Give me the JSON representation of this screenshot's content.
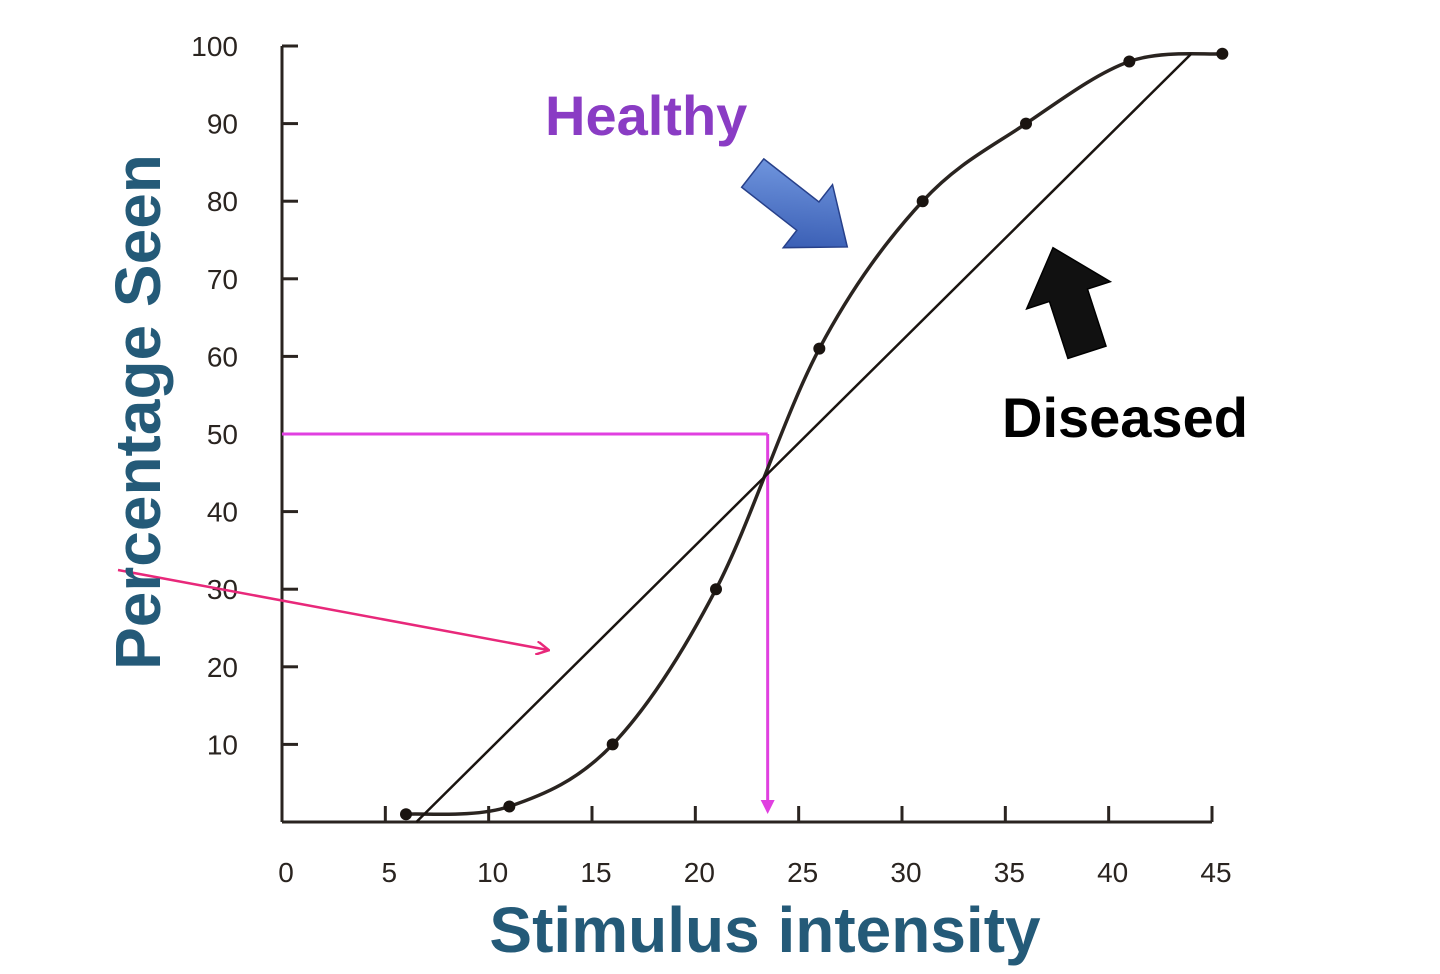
{
  "chart_data": {
    "type": "line",
    "title": "",
    "xlabel": "Stimulus intensity",
    "ylabel": "Percentage Seen",
    "xlim": [
      0,
      45
    ],
    "ylim": [
      0,
      100
    ],
    "x_ticks": [
      0,
      5,
      10,
      15,
      20,
      25,
      30,
      35,
      40,
      45
    ],
    "y_ticks": [
      10,
      20,
      30,
      40,
      50,
      60,
      70,
      80,
      90,
      100
    ],
    "grid": false,
    "series": [
      {
        "name": "Healthy",
        "style": "sigmoid curve with points",
        "points": [
          {
            "x": 6,
            "y": 1
          },
          {
            "x": 11,
            "y": 2
          },
          {
            "x": 16,
            "y": 10
          },
          {
            "x": 21,
            "y": 30
          },
          {
            "x": 26,
            "y": 61
          },
          {
            "x": 31,
            "y": 80
          },
          {
            "x": 36,
            "y": 90
          },
          {
            "x": 41,
            "y": 98
          },
          {
            "x": 45.5,
            "y": 99
          }
        ]
      },
      {
        "name": "Diseased",
        "style": "straight line",
        "points": [
          {
            "x": 6.5,
            "y": 0
          },
          {
            "x": 44,
            "y": 99
          }
        ]
      }
    ],
    "annotations": {
      "threshold_y": 50,
      "threshold_x": 23.5,
      "threshold_color": "#e040e0",
      "pointer_arrow_color": "#e8287a",
      "healthy_arrow_color": "#3a66c4",
      "diseased_arrow_color": "#111111",
      "healthy_label_color": "#8a3cc4",
      "diseased_label_color": "#000000"
    }
  }
}
